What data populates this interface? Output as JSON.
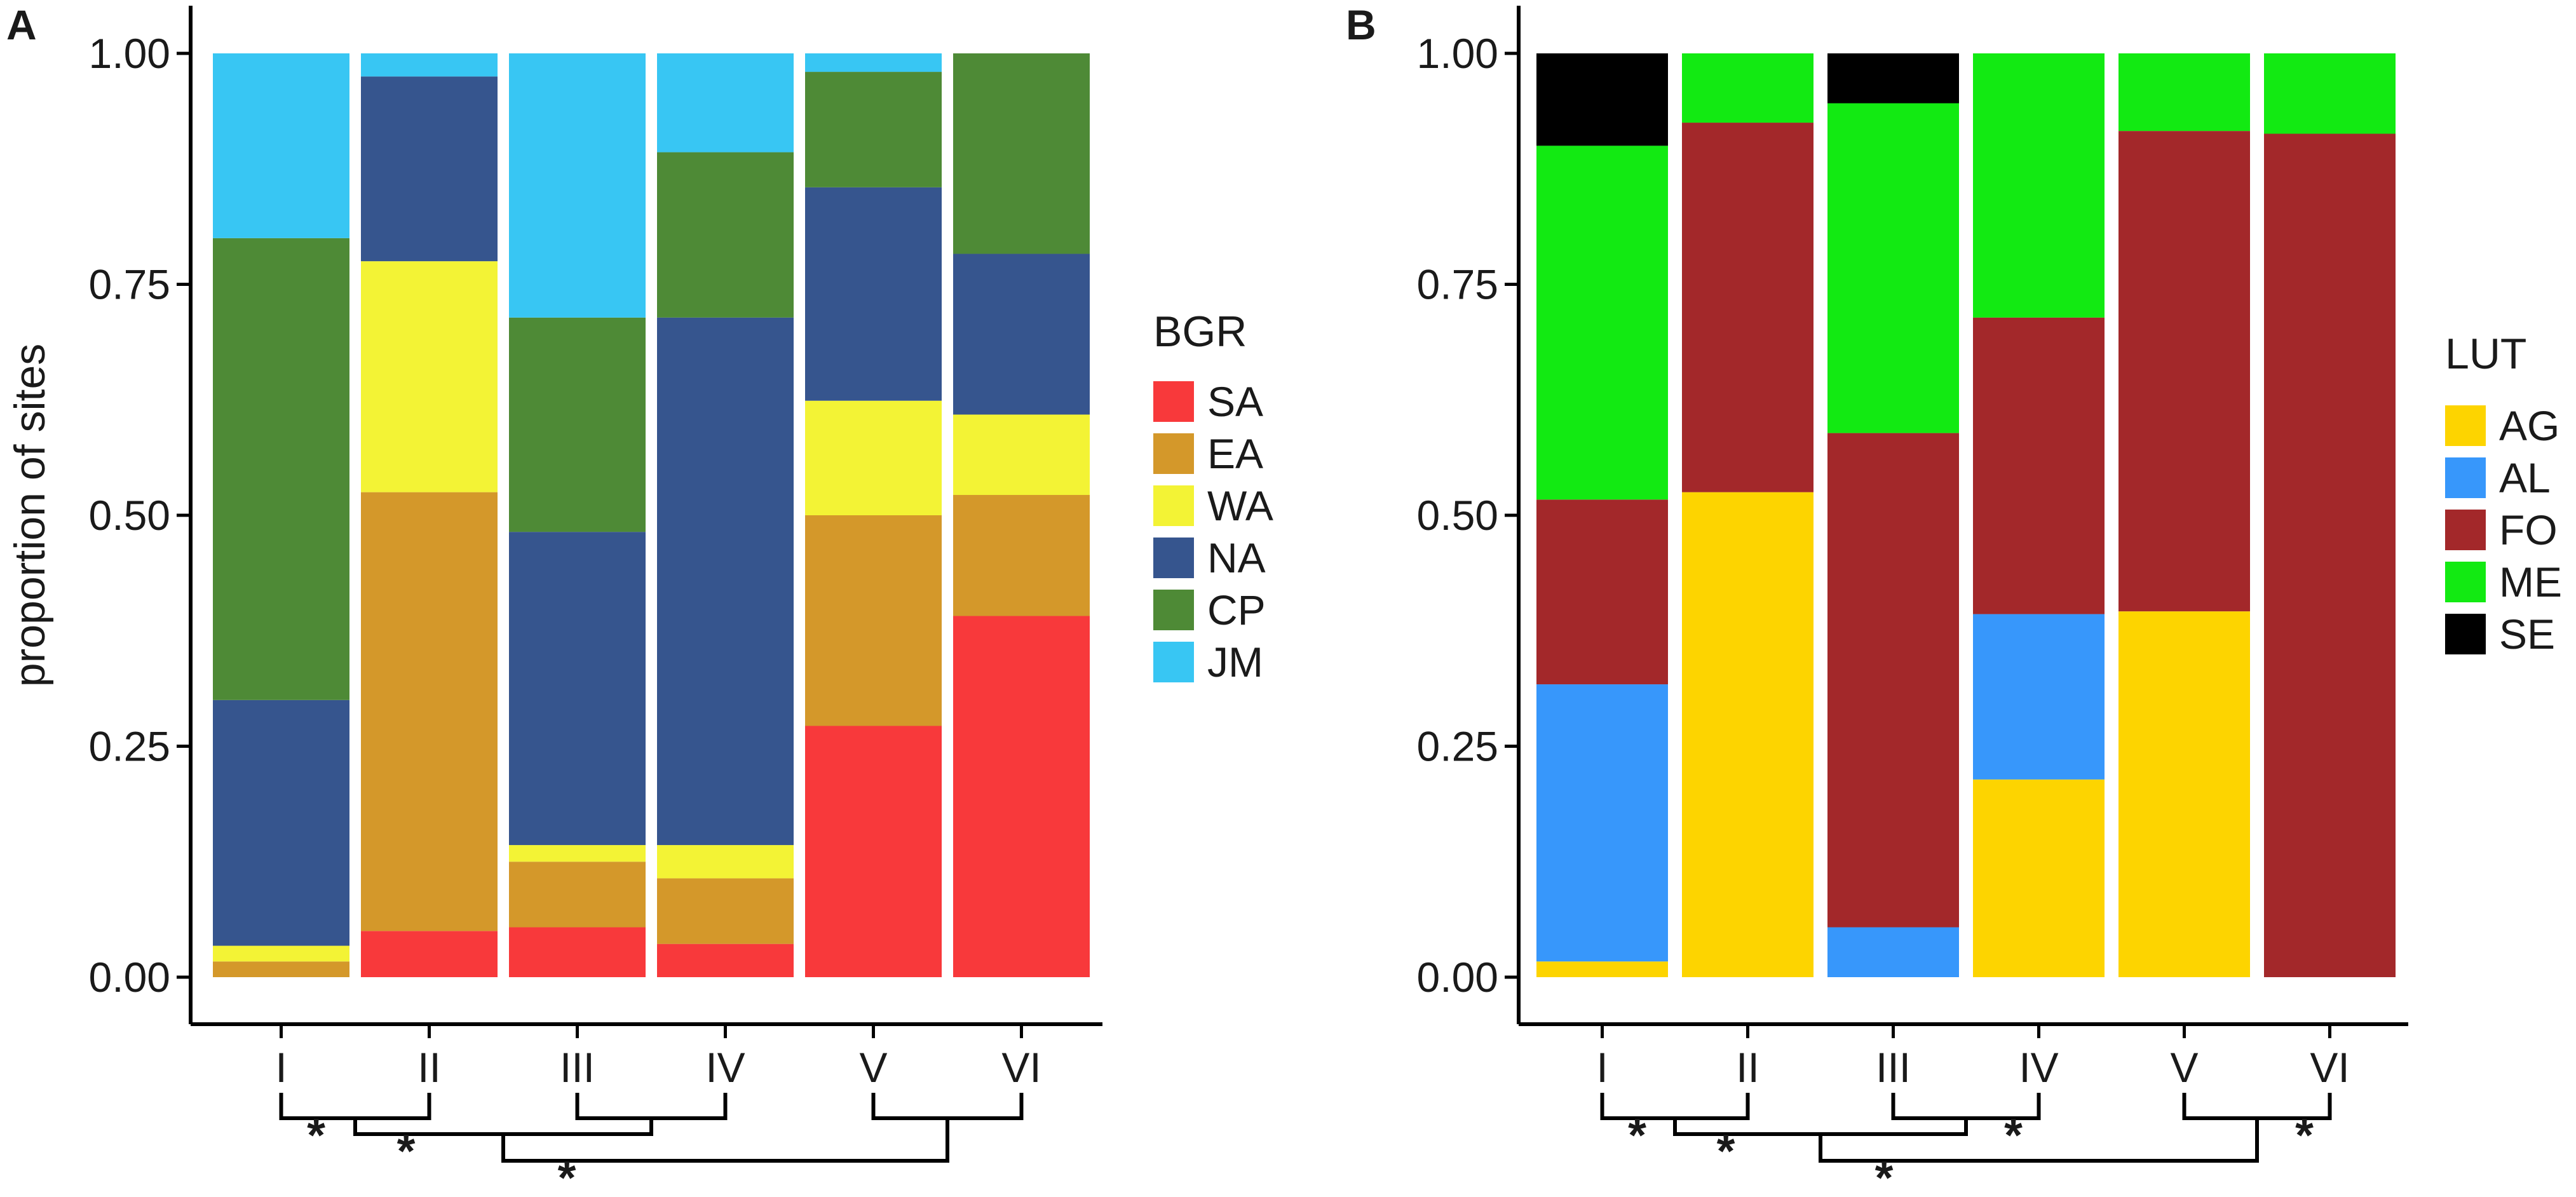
{
  "chart_data": [
    {
      "panel": "A",
      "type": "bar",
      "stacked": true,
      "ylabel": "proportion of sites",
      "xlabel": "",
      "ylim": [
        0,
        1
      ],
      "yticks": [
        "0.00",
        "0.25",
        "0.50",
        "0.75",
        "1.00"
      ],
      "categories": [
        "I",
        "II",
        "III",
        "IV",
        "V",
        "VI"
      ],
      "legend_title": "BGR",
      "series": [
        {
          "name": "SA",
          "color": "#f8393b",
          "values": [
            0.0,
            0.05,
            0.054,
            0.036,
            0.272,
            0.391
          ]
        },
        {
          "name": "EA",
          "color": "#d4982a",
          "values": [
            0.017,
            0.475,
            0.071,
            0.071,
            0.228,
            0.131
          ]
        },
        {
          "name": "WA",
          "color": "#f3f335",
          "values": [
            0.017,
            0.25,
            0.018,
            0.036,
            0.124,
            0.087
          ]
        },
        {
          "name": "NA",
          "color": "#36558e",
          "values": [
            0.266,
            0.2,
            0.339,
            0.571,
            0.231,
            0.174
          ]
        },
        {
          "name": "CP",
          "color": "#4e8a36",
          "values": [
            0.5,
            0.0,
            0.232,
            0.179,
            0.125,
            0.217
          ]
        },
        {
          "name": "JM",
          "color": "#38c6f3",
          "values": [
            0.2,
            0.025,
            0.286,
            0.107,
            0.02,
            0.0
          ]
        }
      ],
      "significance_brackets": [
        {
          "groups": [
            "I",
            "II"
          ],
          "label": "*"
        },
        {
          "groups": [
            "III",
            "IV"
          ],
          "label": ""
        },
        {
          "groups": [
            "V",
            "VI"
          ],
          "label": ""
        },
        {
          "groups": [
            "I-II",
            "III-IV"
          ],
          "label": "*"
        },
        {
          "groups": [
            "I-II/III-IV",
            "V-VI"
          ],
          "label": "*"
        }
      ]
    },
    {
      "panel": "B",
      "type": "bar",
      "stacked": true,
      "ylabel": "",
      "xlabel": "",
      "ylim": [
        0,
        1
      ],
      "yticks": [
        "0.00",
        "0.25",
        "0.50",
        "0.75",
        "1.00"
      ],
      "categories": [
        "I",
        "II",
        "III",
        "IV",
        "V",
        "VI"
      ],
      "legend_title": "LUT",
      "series": [
        {
          "name": "AG",
          "color": "#fdd400",
          "values": [
            0.017,
            0.525,
            0.0,
            0.214,
            0.396,
            0.0
          ]
        },
        {
          "name": "AL",
          "color": "#3797fb",
          "values": [
            0.3,
            0.0,
            0.054,
            0.179,
            0.0,
            0.0
          ]
        },
        {
          "name": "FO",
          "color": "#a3282a",
          "values": [
            0.2,
            0.4,
            0.535,
            0.321,
            0.52,
            0.913
          ]
        },
        {
          "name": "ME",
          "color": "#12ea12",
          "values": [
            0.383,
            0.075,
            0.357,
            0.286,
            0.084,
            0.087
          ]
        },
        {
          "name": "SE",
          "color": "#000000",
          "values": [
            0.1,
            0.0,
            0.054,
            0.0,
            0.0,
            0.0
          ]
        }
      ],
      "significance_brackets": [
        {
          "groups": [
            "I",
            "II"
          ],
          "label": "*"
        },
        {
          "groups": [
            "III",
            "IV"
          ],
          "label": "*"
        },
        {
          "groups": [
            "V",
            "VI"
          ],
          "label": "*"
        },
        {
          "groups": [
            "I-II",
            "III-IV"
          ],
          "label": "*"
        },
        {
          "groups": [
            "I-II/III-IV",
            "V-VI"
          ],
          "label": "*"
        }
      ]
    }
  ]
}
